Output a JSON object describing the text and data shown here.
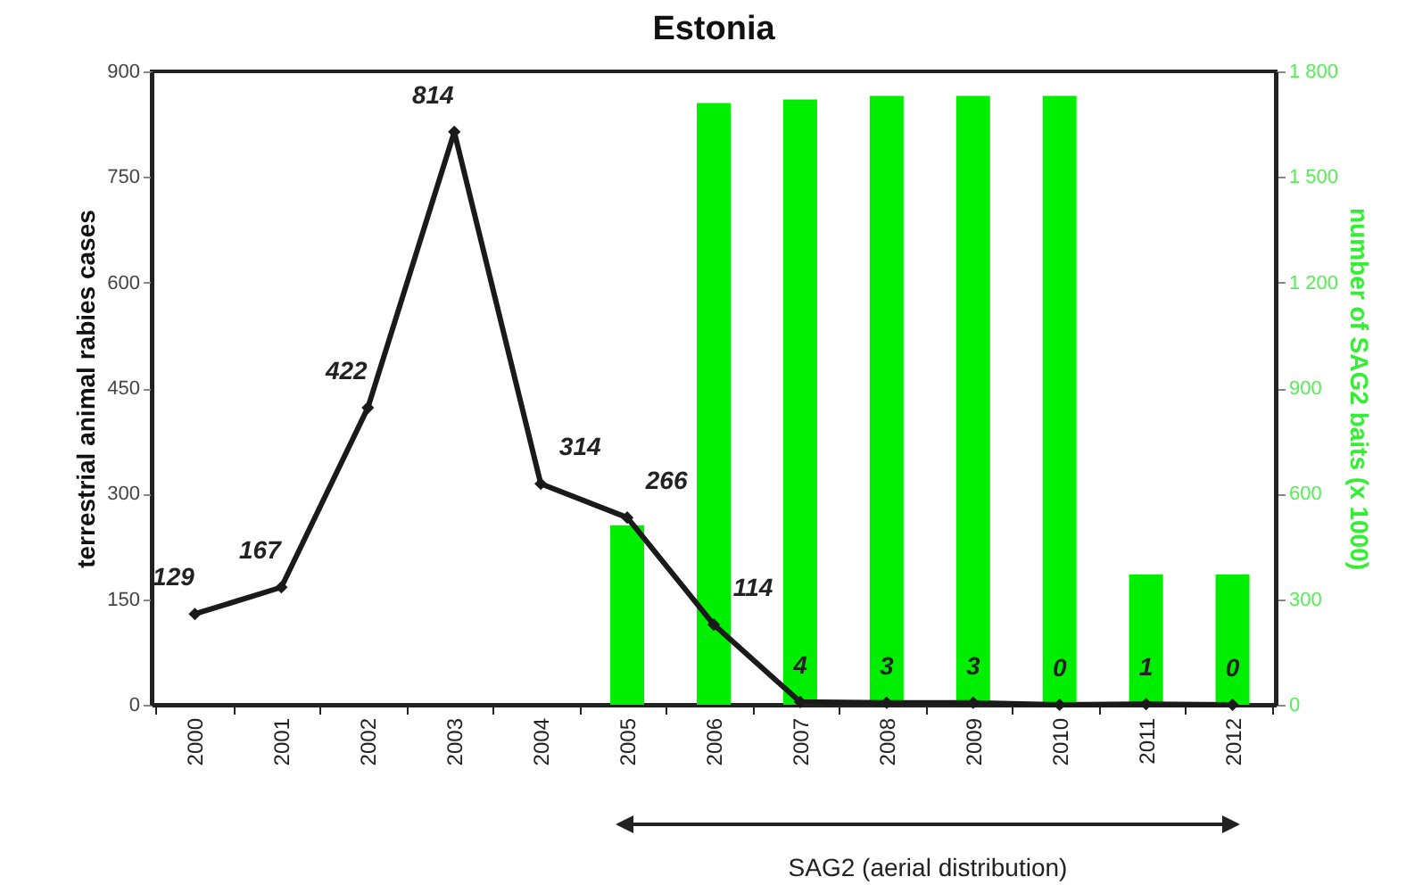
{
  "chart_data": {
    "type": "bar",
    "title": "Estonia",
    "ylabel": "terrestrial animal rabies cases",
    "y2label": "number of SAG2 baits  (x 1000)",
    "categories": [
      "2000",
      "2001",
      "2002",
      "2003",
      "2004",
      "2005",
      "2006",
      "2007",
      "2008",
      "2009",
      "2010",
      "2011",
      "2012"
    ],
    "series": [
      {
        "axis": "y2",
        "color": "#00ee00",
        "values": [
          null,
          null,
          null,
          null,
          null,
          510,
          1710,
          1720,
          1730,
          1730,
          1730,
          370,
          370
        ]
      },
      {
        "type": "line",
        "color": "#1a1a1a",
        "marker": "diamond",
        "values": [
          129,
          167,
          422,
          814,
          314,
          266,
          114,
          4,
          3,
          3,
          0,
          1,
          0
        ],
        "value_labels": [
          "129",
          "167",
          "422",
          "814",
          "314",
          "266",
          "114",
          "4",
          "3",
          "3",
          "0",
          "1",
          "0"
        ]
      }
    ],
    "ylim": [
      0,
      900
    ],
    "yticks": [
      0,
      150,
      300,
      450,
      600,
      750,
      900
    ],
    "y2lim": [
      0,
      1800
    ],
    "y2ticks": [
      0,
      {
        "value": 300,
        "label": "300"
      },
      {
        "value": 600,
        "label": "600"
      },
      {
        "value": 900,
        "label": "900"
      },
      {
        "value": 1200,
        "label": "1 200"
      },
      {
        "value": 1500,
        "label": "1 500"
      },
      {
        "value": 1800,
        "label": "1 800"
      }
    ],
    "annotations": [
      "SAG2 (aerial distribution)"
    ]
  }
}
